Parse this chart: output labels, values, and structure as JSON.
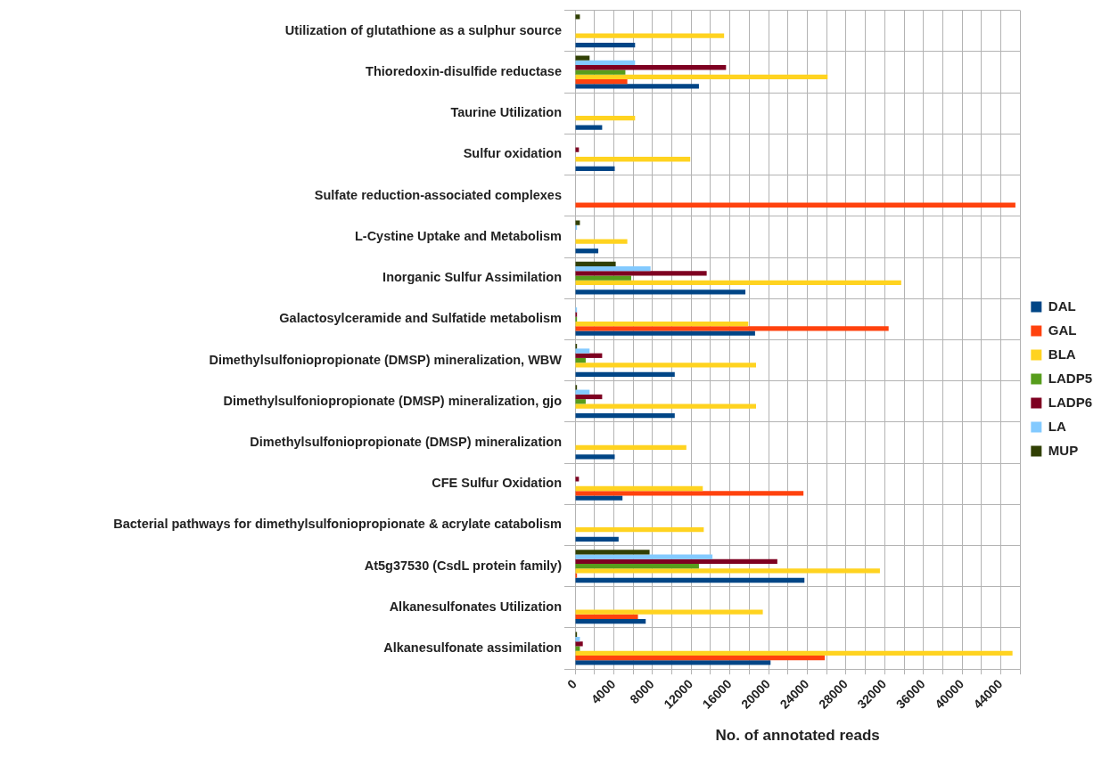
{
  "chart_data": {
    "type": "bar",
    "orientation": "horizontal",
    "xlabel": "No. of annotated reads",
    "categories": [
      "Utilization of glutathione as a sulphur source",
      "Thioredoxin-disulfide reductase",
      "Taurine Utilization",
      "Sulfur oxidation",
      "Sulfate reduction-associated complexes",
      "L-Cystine Uptake and Metabolism",
      "Inorganic Sulfur Assimilation",
      "Galactosylceramide and Sulfatide metabolism",
      "Dimethylsulfoniopropionate (DMSP) mineralization, WBW",
      "Dimethylsulfoniopropionate (DMSP) mineralization, gjo",
      "Dimethylsulfoniopropionate (DMSP) mineralization",
      "CFE Sulfur Oxidation",
      "Bacterial pathways for dimethylsulfoniopropionate & acrylate catabolism",
      "At5g37530 (CsdL protein family)",
      "Alkanesulfonates Utilization",
      "Alkanesulfonate assimilation"
    ],
    "series": [
      {
        "name": "DAL",
        "color": "#004586",
        "values": [
          6200,
          12800,
          2800,
          4100,
          0,
          2400,
          17600,
          18600,
          10300,
          10300,
          4100,
          4900,
          4500,
          23700,
          7300,
          20200
        ]
      },
      {
        "name": "GAL",
        "color": "#ff420e",
        "values": [
          0,
          5400,
          0,
          0,
          45500,
          0,
          0,
          32400,
          0,
          0,
          0,
          23600,
          0,
          200,
          6500,
          25800
        ]
      },
      {
        "name": "BLA",
        "color": "#ffd320",
        "values": [
          15400,
          26100,
          6200,
          11900,
          0,
          5400,
          33700,
          17900,
          18700,
          18700,
          11500,
          13200,
          13300,
          31500,
          19400,
          45200
        ]
      },
      {
        "name": "LADP5",
        "color": "#579d1c",
        "values": [
          0,
          5200,
          0,
          0,
          0,
          0,
          5800,
          200,
          1100,
          1100,
          0,
          0,
          0,
          12800,
          0,
          500
        ]
      },
      {
        "name": "LADP6",
        "color": "#7e0021",
        "values": [
          0,
          15600,
          0,
          400,
          0,
          0,
          13600,
          200,
          2800,
          2800,
          0,
          400,
          0,
          20900,
          0,
          800
        ]
      },
      {
        "name": "LA",
        "color": "#83caff",
        "values": [
          0,
          6200,
          0,
          0,
          0,
          200,
          7800,
          200,
          1500,
          1500,
          0,
          0,
          0,
          14200,
          0,
          500
        ]
      },
      {
        "name": "MUP",
        "color": "#314004",
        "values": [
          500,
          1500,
          0,
          0,
          0,
          500,
          4200,
          0,
          200,
          200,
          0,
          0,
          0,
          7700,
          0,
          200
        ]
      }
    ],
    "xlim": [
      0,
      46000
    ],
    "xticks": [
      0,
      {
        "value": 2000,
        "label": null
      },
      4000,
      {
        "value": 6000,
        "label": null
      },
      8000,
      {
        "value": 10000,
        "label": null
      },
      12000,
      {
        "value": 14000,
        "label": null
      },
      16000,
      {
        "value": 18000,
        "label": null
      },
      20000,
      {
        "value": 22000,
        "label": null
      },
      24000,
      {
        "value": 26000,
        "label": null
      },
      28000,
      {
        "value": 30000,
        "label": null
      },
      32000,
      {
        "value": 34000,
        "label": null
      },
      36000,
      {
        "value": 38000,
        "label": null
      },
      40000,
      {
        "value": 42000,
        "label": null
      },
      44000,
      {
        "value": 46000,
        "label": null
      }
    ],
    "grid": true,
    "legend": "right"
  }
}
